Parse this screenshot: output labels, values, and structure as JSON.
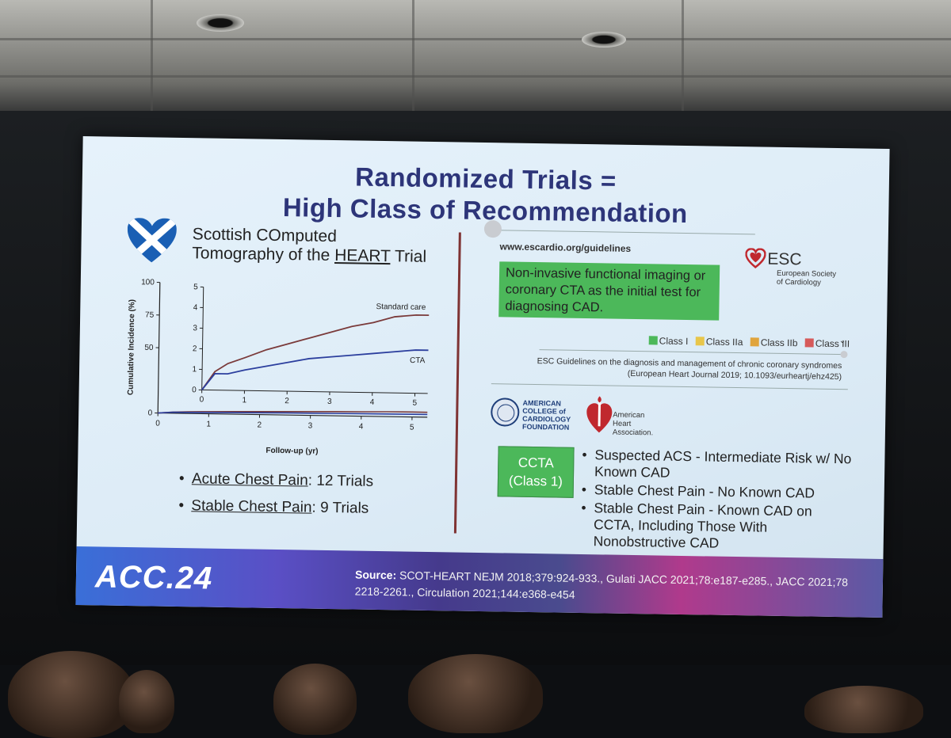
{
  "slide": {
    "title_line1": "Randomized Trials =",
    "title_line2": "High Class of Recommendation"
  },
  "scot_heart": {
    "title_line1": "Scottish COmputed",
    "title_line2_prefix": "Tomography of the ",
    "title_line2_heart": "HEART",
    "title_line2_suffix": " Trial"
  },
  "chart_data": {
    "type": "line",
    "xlabel": "Follow-up (yr)",
    "ylabel": "Cumulative Incidence (%)",
    "xlim": [
      0,
      5.3
    ],
    "ylim": [
      0,
      100
    ],
    "x_ticks": [
      "0",
      "1",
      "2",
      "3",
      "4",
      "5"
    ],
    "y_ticks": [
      "0",
      "50",
      "75",
      "100"
    ],
    "inset": {
      "xlim": [
        0,
        5.3
      ],
      "ylim": [
        0,
        5
      ],
      "x_ticks": [
        "0",
        "1",
        "2",
        "3",
        "4",
        "5"
      ],
      "y_ticks": [
        "0",
        "1",
        "2",
        "3",
        "4",
        "5"
      ]
    },
    "series": [
      {
        "name": "Standard care",
        "color": "#7a3a3a",
        "x": [
          0,
          0.3,
          0.6,
          1.0,
          1.5,
          2.0,
          2.5,
          3.0,
          3.5,
          4.0,
          4.5,
          5.0,
          5.3
        ],
        "y": [
          0,
          0.9,
          1.3,
          1.6,
          2.0,
          2.3,
          2.6,
          2.9,
          3.2,
          3.4,
          3.7,
          3.8,
          3.8
        ]
      },
      {
        "name": "CTA",
        "color": "#2c3f9e",
        "x": [
          0,
          0.3,
          0.6,
          1.0,
          1.5,
          2.0,
          2.5,
          3.0,
          3.5,
          4.0,
          4.5,
          5.0,
          5.3
        ],
        "y": [
          0,
          0.8,
          0.8,
          1.0,
          1.2,
          1.4,
          1.6,
          1.7,
          1.8,
          1.9,
          2.0,
          2.1,
          2.1
        ]
      }
    ]
  },
  "left_bullets": [
    {
      "label": "Acute Chest Pain",
      "value": ": 12 Trials"
    },
    {
      "label": "Stable Chest Pain",
      "value": ": 9 Trials"
    }
  ],
  "esc": {
    "url": "www.escardio.org/guidelines",
    "recommendation": "Non-invasive functional imaging or coronary CTA as the initial test for diagnosing CAD.",
    "logo_name": "ESC",
    "logo_sub1": "European Society",
    "logo_sub2": "of Cardiology",
    "legend": [
      {
        "label": "Class I",
        "color": "#4cb85a"
      },
      {
        "label": "Class IIa",
        "color": "#e8c64a"
      },
      {
        "label": "Class IIb",
        "color": "#e0a43c"
      },
      {
        "label": "Class III",
        "color": "#d65a5a"
      }
    ],
    "citation_line1": "ESC Guidelines on the diagnosis and management of chronic coronary syndromes",
    "citation_line2": "(European Heart Journal 2019; 10.1093/eurheartj/ehz425)"
  },
  "accf": {
    "line1": "AMERICAN",
    "line2": "COLLEGE of",
    "line3": "CARDIOLOGY",
    "line4": "FOUNDATION"
  },
  "aha": {
    "line1": "American",
    "line2": "Heart",
    "line3": "Association."
  },
  "ccta": {
    "box_line1": "CCTA",
    "box_line2": "(Class 1)",
    "items": [
      "Suspected ACS - Intermediate Risk w/ No Known CAD",
      "Stable Chest Pain - No Known CAD",
      "Stable Chest Pain - Known CAD on CCTA, Including Those With Nonobstructive CAD"
    ]
  },
  "footer": {
    "logo": "ACC.24",
    "source_label": "Source:",
    "source_text": " SCOT-HEART NEJM 2018;379:924-933., Gulati JACC 2021;78:e187-e285., JACC 2021;78 2218-2261., Circulation 2021;144:e368-e454"
  }
}
